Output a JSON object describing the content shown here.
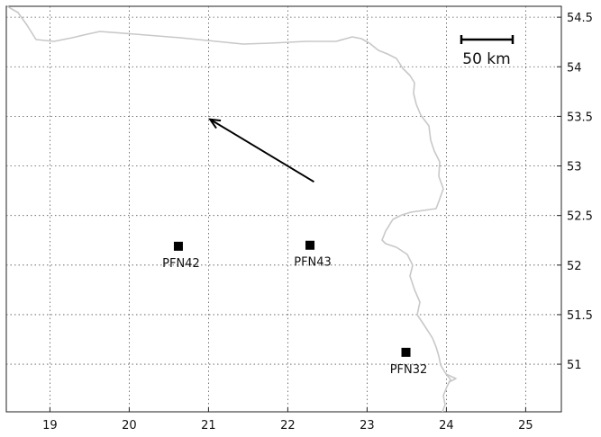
{
  "map": {
    "x_ticks": [
      "19",
      "20",
      "21",
      "22",
      "23",
      "24",
      "25"
    ],
    "y_ticks": [
      "51",
      "51.5",
      "52",
      "52.5",
      "53",
      "53.5",
      "54",
      "54.5"
    ],
    "x_range": [
      18.45,
      25.45
    ],
    "y_range": [
      50.52,
      54.61
    ],
    "stations": [
      {
        "name": "PFN42",
        "lon": 20.62,
        "lat": 52.19
      },
      {
        "name": "PFN43",
        "lon": 22.28,
        "lat": 52.2
      },
      {
        "name": "PFN32",
        "lon": 23.49,
        "lat": 51.12
      }
    ],
    "arrow": {
      "from": [
        22.33,
        52.84
      ],
      "to": [
        21.02,
        53.47
      ]
    },
    "scale_bar": {
      "label": "50 km"
    },
    "colors": {
      "border": "#c8c8c8",
      "grid": "#555555",
      "marker": "#000000"
    }
  }
}
